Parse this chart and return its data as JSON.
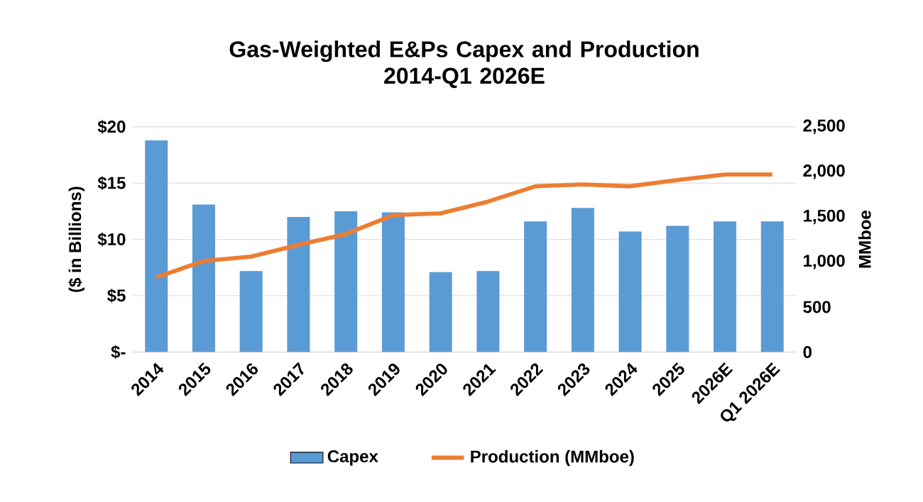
{
  "chart_data": {
    "type": "bar",
    "title": "Gas-Weighted E&Ps Capex and Production\n2014-Q1 2026E",
    "categories": [
      "2014",
      "2015",
      "2016",
      "2017",
      "2018",
      "2019",
      "2020",
      "2021",
      "2022",
      "2023",
      "2024",
      "2025",
      "2026E",
      "Q1 2026E"
    ],
    "series": [
      {
        "name": "Capex",
        "color": "#5b9bd5",
        "values": [
          18.8,
          13.1,
          7.2,
          12.0,
          12.5,
          12.4,
          7.1,
          7.2,
          11.6,
          12.8,
          10.7,
          11.2,
          11.6,
          11.6
        ]
      },
      {
        "name": "Production (MMboe)",
        "type": "line",
        "axis": "y2",
        "color": "#ed7d31",
        "values": [
          830,
          1010,
          1060,
          1190,
          1310,
          1520,
          1540,
          1670,
          1840,
          1860,
          1840,
          1910,
          1970,
          1970
        ]
      }
    ],
    "ylabel": "($ in Billions)",
    "y2label": "MMboe",
    "ylim": [
      0,
      20
    ],
    "yticks": [
      {
        "value": 0,
        "label": "$-"
      },
      {
        "value": 5,
        "label": "$5"
      },
      {
        "value": 10,
        "label": "$10"
      },
      {
        "value": 15,
        "label": "$15"
      },
      {
        "value": 20,
        "label": "$20"
      }
    ],
    "y2lim": [
      0,
      2500
    ],
    "y2ticks": [
      {
        "value": 0,
        "label": "0"
      },
      {
        "value": 500,
        "label": "500"
      },
      {
        "value": 1000,
        "label": "1,000"
      },
      {
        "value": 1500,
        "label": "1,500"
      },
      {
        "value": 2000,
        "label": "2,000"
      },
      {
        "value": 2500,
        "label": "2,500"
      }
    ],
    "grid": "y",
    "legend": "bottom"
  }
}
